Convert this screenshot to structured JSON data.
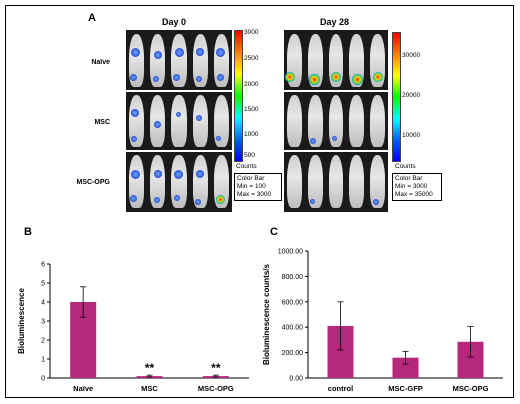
{
  "panel_a": {
    "letter": "A",
    "day0_title": "Day 0",
    "day28_title": "Day 28",
    "row_labels": [
      "Naïve",
      "MSC",
      "MSC-OPG"
    ],
    "day0_colorbar": {
      "ticks": [
        "3000",
        "2500",
        "2000",
        "1500",
        "1000",
        "500"
      ],
      "units": "Counts",
      "legend": [
        "Color Bar",
        "Min = 100",
        "Max = 3000"
      ]
    },
    "day28_colorbar": {
      "ticks": [
        "30000",
        "20000",
        "10000"
      ],
      "units": "Counts",
      "legend": [
        "Color Bar",
        "Min = 3000",
        "Max = 35000"
      ]
    }
  },
  "chart_data": [
    {
      "panel": "B",
      "type": "bar",
      "categories": [
        "Naïve",
        "MSC",
        "MSC-OPG"
      ],
      "values": [
        4.0,
        0.1,
        0.1
      ],
      "errors": [
        0.8,
        0.05,
        0.05
      ],
      "annotations": [
        "",
        "**",
        "**"
      ],
      "ylabel": "Bioluminescence",
      "ylim": [
        0,
        6
      ],
      "yticks": [
        "0",
        "1",
        "2",
        "3",
        "4",
        "5",
        "6"
      ],
      "bar_color": "#b5287c"
    },
    {
      "panel": "C",
      "type": "bar",
      "categories": [
        "control",
        "MSC-GFP",
        "MSC-OPG"
      ],
      "values": [
        410,
        160,
        285
      ],
      "errors": [
        190,
        50,
        120
      ],
      "ylabel": "Bioluminescence counts/s",
      "ylim": [
        0,
        1000
      ],
      "yticks": [
        "0.00",
        "200.00",
        "400.00",
        "600.00",
        "800.00",
        "1000.00"
      ],
      "bar_color": "#b5287c"
    }
  ]
}
